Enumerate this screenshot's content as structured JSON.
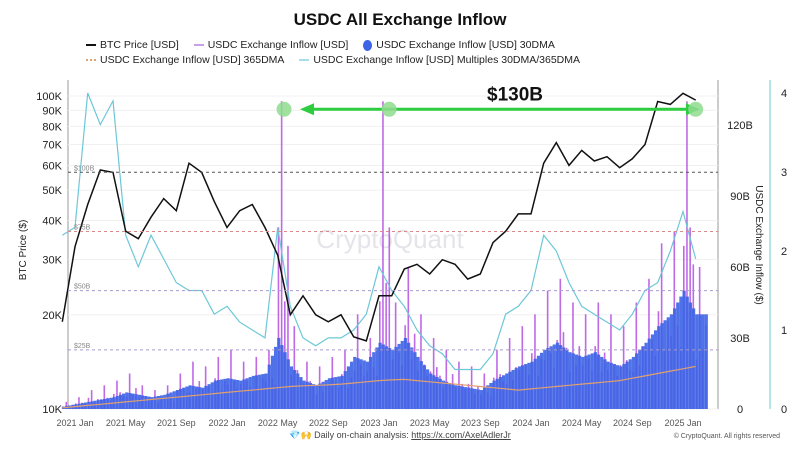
{
  "chart_data": {
    "type": "bar",
    "title": "USDC All Exchange Inflow",
    "legend": [
      {
        "label": "BTC Price [USD]",
        "color": "#111111",
        "marker": "line"
      },
      {
        "label": "USDC Exchange Inflow [USD]",
        "color": "#b44fe0",
        "marker": "line"
      },
      {
        "label": "USDC Exchange Inflow [USD] 30DMA",
        "color": "#3d63e6",
        "marker": "dot"
      },
      {
        "label": "USDC Exchange Inflow [USD] 365DMA",
        "color": "#e0a070",
        "marker": "dash"
      },
      {
        "label": "USDC Exchange Inflow [USD] Multiples 30DMA/365DMA",
        "color": "#6cc7d8",
        "marker": "line"
      }
    ],
    "ylabel_left": "BTC Price ($)",
    "ylabel_right": "USDC Exchange Inflow ($)",
    "left_ticks": [
      {
        "v": 10000,
        "t": "10K"
      },
      {
        "v": 20000,
        "t": "20K"
      },
      {
        "v": 30000,
        "t": "30K"
      },
      {
        "v": 40000,
        "t": "40K"
      },
      {
        "v": 50000,
        "t": "50K"
      },
      {
        "v": 60000,
        "t": "60K"
      },
      {
        "v": 70000,
        "t": "70K"
      },
      {
        "v": 80000,
        "t": "80K"
      },
      {
        "v": 90000,
        "t": "90K"
      },
      {
        "v": 100000,
        "t": "100K"
      }
    ],
    "right_ticks": [
      {
        "v": 0,
        "t": "0"
      },
      {
        "v": 30,
        "t": "30B"
      },
      {
        "v": 60,
        "t": "60B"
      },
      {
        "v": 90,
        "t": "90B"
      },
      {
        "v": 120,
        "t": "120B"
      }
    ],
    "multiple_ticks": [
      {
        "v": 0,
        "t": "0"
      },
      {
        "v": 1,
        "t": "1"
      },
      {
        "v": 2,
        "t": "2"
      },
      {
        "v": 3,
        "t": "3"
      },
      {
        "v": 4,
        "t": "4"
      }
    ],
    "x_ticks": [
      {
        "m": 0,
        "t": "2021 Jan"
      },
      {
        "m": 4,
        "t": "2021 May"
      },
      {
        "m": 8,
        "t": "2021 Sep"
      },
      {
        "m": 12,
        "t": "2022 Jan"
      },
      {
        "m": 16,
        "t": "2022 May"
      },
      {
        "m": 20,
        "t": "2022 Sep"
      },
      {
        "m": 24,
        "t": "2023 Jan"
      },
      {
        "m": 28,
        "t": "2023 May"
      },
      {
        "m": 32,
        "t": "2023 Sep"
      },
      {
        "m": 36,
        "t": "2024 Jan"
      },
      {
        "m": 40,
        "t": "2024 May"
      },
      {
        "m": 44,
        "t": "2024 Sep"
      },
      {
        "m": 48,
        "t": "2025 Jan"
      }
    ],
    "ref_lines": [
      {
        "v": 100,
        "t": "$100B",
        "color": "#555555"
      },
      {
        "v": 75,
        "t": "$75B",
        "color": "#d98a8a"
      },
      {
        "v": 50,
        "t": "$50B",
        "color": "#a99ad0"
      },
      {
        "v": 25,
        "t": "$25B",
        "color": "#a99ad0"
      }
    ],
    "months_from_2021_jan": [
      -1,
      0,
      1,
      2,
      3,
      4,
      5,
      6,
      7,
      8,
      9,
      10,
      11,
      12,
      13,
      14,
      15,
      16,
      17,
      18,
      19,
      20,
      21,
      22,
      23,
      24,
      25,
      26,
      27,
      28,
      29,
      30,
      31,
      32,
      33,
      34,
      35,
      36,
      37,
      38,
      39,
      40,
      41,
      42,
      43,
      44,
      45,
      46,
      47,
      48,
      49
    ],
    "btc_price": [
      19000,
      33000,
      45000,
      58000,
      57000,
      37000,
      35000,
      41000,
      47000,
      43000,
      61000,
      57000,
      46000,
      38000,
      43000,
      45000,
      38000,
      31000,
      20000,
      23000,
      20000,
      19000,
      20000,
      17000,
      16500,
      23000,
      23000,
      28000,
      29000,
      27000,
      30000,
      29000,
      26000,
      27000,
      34000,
      37000,
      42000,
      42000,
      61000,
      71000,
      60000,
      67000,
      62000,
      64000,
      59000,
      63000,
      70000,
      96000,
      94000,
      102000,
      97000
    ],
    "inflow_b": [
      3,
      5,
      8,
      10,
      12,
      15,
      10,
      8,
      10,
      15,
      20,
      18,
      22,
      25,
      20,
      22,
      25,
      130,
      35,
      20,
      18,
      22,
      25,
      40,
      30,
      130,
      45,
      60,
      40,
      30,
      25,
      20,
      18,
      15,
      25,
      30,
      35,
      40,
      50,
      55,
      45,
      40,
      45,
      40,
      35,
      45,
      55,
      70,
      75,
      130,
      60
    ],
    "inflow_30dma_b": [
      1,
      2,
      3,
      4,
      5,
      7,
      6,
      5,
      6,
      8,
      10,
      9,
      12,
      13,
      12,
      14,
      15,
      30,
      18,
      12,
      10,
      13,
      14,
      22,
      20,
      28,
      25,
      30,
      22,
      15,
      12,
      10,
      9,
      8,
      12,
      15,
      18,
      20,
      25,
      28,
      24,
      22,
      24,
      20,
      18,
      22,
      28,
      35,
      40,
      50,
      40
    ],
    "inflow_365dma_b": [
      0.5,
      1,
      1.5,
      2,
      2.5,
      3,
      3.5,
      4,
      4.5,
      5,
      5.5,
      6,
      6.5,
      7,
      7.5,
      8,
      8.5,
      9,
      9.5,
      9.8,
      10,
      10.2,
      10.5,
      11,
      11.5,
      12,
      12.3,
      12.5,
      12,
      11.5,
      11,
      10.5,
      10,
      9.5,
      9,
      8.5,
      8,
      8.5,
      9,
      9.5,
      10,
      10.5,
      11,
      11.5,
      12,
      13,
      14,
      15,
      16,
      17,
      18
    ],
    "multiples": [
      2.2,
      2.3,
      4.0,
      3.6,
      3.9,
      2.2,
      1.8,
      2.2,
      1.9,
      1.6,
      1.5,
      1.5,
      1.2,
      1.3,
      1.1,
      1.0,
      0.9,
      2.3,
      1.3,
      0.9,
      0.8,
      0.9,
      0.9,
      1.0,
      1.2,
      1.8,
      1.5,
      1.3,
      1.0,
      0.8,
      0.7,
      0.5,
      0.5,
      0.5,
      0.7,
      1.2,
      1.3,
      1.5,
      2.2,
      2.0,
      1.6,
      1.3,
      1.2,
      1.1,
      1.0,
      1.2,
      1.5,
      1.6,
      2.0,
      2.5,
      1.9
    ],
    "annotation": {
      "text": "$130B",
      "level_b": 130,
      "markers_month": [
        16.5,
        24.8,
        49
      ]
    },
    "watermark": "CryptoQuant"
  },
  "footer": {
    "text": "Daily on-chain analysis: ",
    "link": "https://x.com/AxelAdlerJr",
    "copyright": "© CryptoQuant. All rights reserved",
    "emoji": "💎🙌"
  }
}
